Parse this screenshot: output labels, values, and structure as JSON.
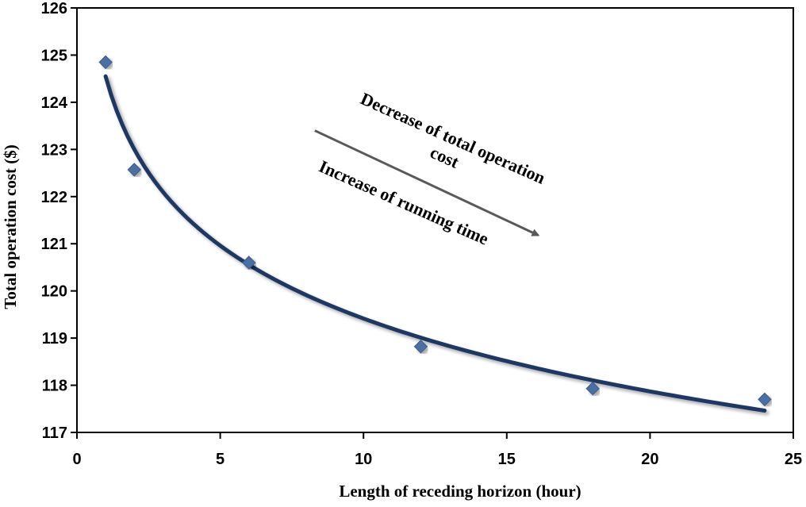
{
  "chart_data": {
    "type": "scatter",
    "title": "",
    "xlabel": "Length of receding horizon  (hour)",
    "ylabel": "Total operation cost ($)",
    "xlim": [
      0,
      25
    ],
    "ylim": [
      117,
      126
    ],
    "x_ticks": [
      "0",
      "5",
      "10",
      "15",
      "20",
      "25"
    ],
    "y_ticks": [
      "117",
      "118",
      "119",
      "120",
      "121",
      "122",
      "123",
      "124",
      "125",
      "126"
    ],
    "grid": false,
    "legend": "none",
    "series": [
      {
        "marker": "diamond",
        "color": "#4A6FA5",
        "x": [
          1,
          2,
          6,
          12,
          18,
          24
        ],
        "y": [
          124.85,
          122.57,
          120.6,
          118.82,
          117.93,
          117.7
        ]
      }
    ],
    "trendline": {
      "type": "logarithmic",
      "color": "#1F3864",
      "x_range": [
        1,
        24
      ],
      "intercept": 124.55,
      "slope": -2.23
    },
    "annotations": [
      {
        "text": "Decrease  of total operation",
        "line": 1
      },
      {
        "text": "cost",
        "line": 2
      },
      {
        "text": "Increase of running  time",
        "line": 3
      }
    ],
    "arrow": {
      "from": [
        8.3,
        123.4
      ],
      "to": [
        16.1,
        121.18
      ],
      "color": "#595959"
    }
  }
}
